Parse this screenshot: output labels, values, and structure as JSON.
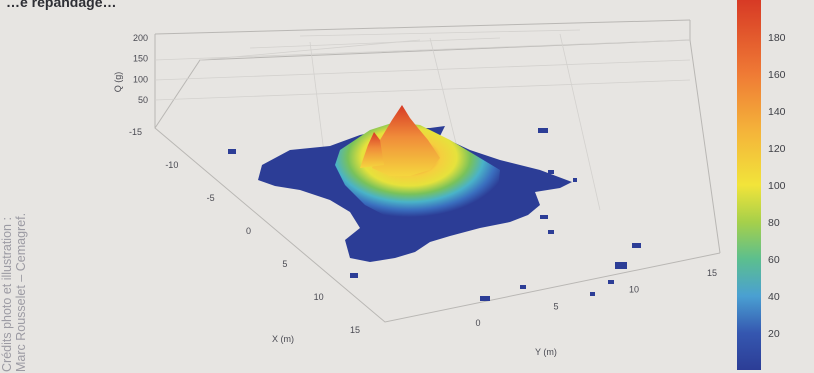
{
  "caption_fragment": "…e répandage…",
  "credits": {
    "line1": "Crédits photo et illustration :",
    "line2": "Marc Rousselet – Cemagref."
  },
  "chart_data": {
    "type": "surface",
    "xlabel": "X (m)",
    "ylabel": "Y (m)",
    "zlabel": "Q (g)",
    "x_ticks": [
      -15,
      -10,
      -5,
      0,
      5,
      10,
      15
    ],
    "y_ticks": [
      0,
      5,
      10,
      15
    ],
    "z_ticks": [
      50,
      100,
      150,
      200
    ],
    "colorbar": {
      "ticks": [
        20,
        40,
        60,
        80,
        100,
        120,
        140,
        160,
        180
      ],
      "range": [
        0,
        200
      ],
      "colormap": "jet"
    },
    "colors": {
      "background": "#e7e5e2",
      "low": "#2c3d96",
      "high": "#d73a25"
    },
    "peak": {
      "x_m": -6,
      "y_m": 0,
      "q_g": 180
    },
    "deposit_outline": {
      "x_range": [
        -13,
        12
      ],
      "y_range": [
        -9,
        14
      ]
    }
  }
}
